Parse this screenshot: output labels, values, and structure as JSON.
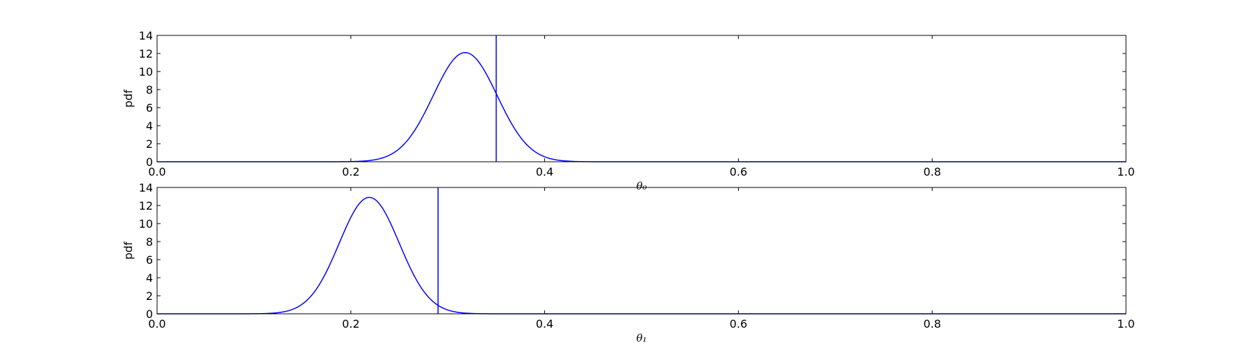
{
  "chart_data": [
    {
      "type": "line",
      "title": "",
      "xlabel": "θ₀",
      "ylabel": "pdf",
      "xlim": [
        0.0,
        1.0
      ],
      "ylim": [
        0,
        14
      ],
      "x_ticks": [
        "0.0",
        "0.2",
        "0.4",
        "0.6",
        "0.8",
        "1.0"
      ],
      "y_ticks": [
        "0",
        "2",
        "4",
        "6",
        "8",
        "10",
        "12",
        "14"
      ],
      "grid": false,
      "legend": "none",
      "series_color": "#0000ff",
      "series": [
        {
          "kind": "normal_pdf",
          "mean": 0.318,
          "sd": 0.033,
          "peak": 12.1
        }
      ],
      "vline": {
        "x": 0.35
      }
    },
    {
      "type": "line",
      "title": "",
      "xlabel": "θ₁",
      "ylabel": "pdf",
      "xlim": [
        0.0,
        1.0
      ],
      "ylim": [
        0,
        14
      ],
      "x_ticks": [
        "0.0",
        "0.2",
        "0.4",
        "0.6",
        "0.8",
        "1.0"
      ],
      "y_ticks": [
        "0",
        "2",
        "4",
        "6",
        "8",
        "10",
        "12",
        "14"
      ],
      "grid": false,
      "legend": "none",
      "series_color": "#0000ff",
      "series": [
        {
          "kind": "normal_pdf",
          "mean": 0.219,
          "sd": 0.031,
          "peak": 12.9
        }
      ],
      "vline": {
        "x": 0.29
      }
    }
  ]
}
